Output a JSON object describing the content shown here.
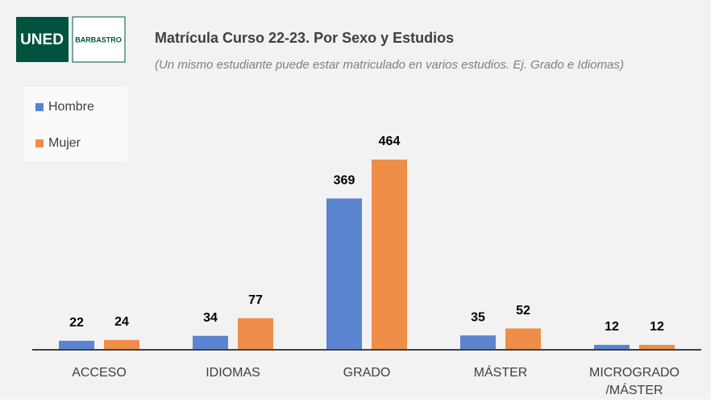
{
  "logo": {
    "primary": "UNED",
    "secondary": "BARBASTRO"
  },
  "chart_data": {
    "type": "bar",
    "title": "Matrícula Curso 22-23. Por Sexo y Estudios",
    "subtitle": "(Un mismo estudiante puede estar matriculado en varios estudios. Ej. Grado e Idiomas)",
    "categories": [
      "ACCESO",
      "IDIOMAS",
      "GRADO",
      "MÁSTER",
      "MICROGRADO\n/MÁSTER"
    ],
    "series": [
      {
        "name": "Hombre",
        "color": "#5b84d0",
        "values": [
          22,
          34,
          369,
          35,
          12
        ]
      },
      {
        "name": "Mujer",
        "color": "#ee8e48",
        "values": [
          24,
          77,
          464,
          52,
          12
        ]
      }
    ],
    "legend": "top-left"
  }
}
